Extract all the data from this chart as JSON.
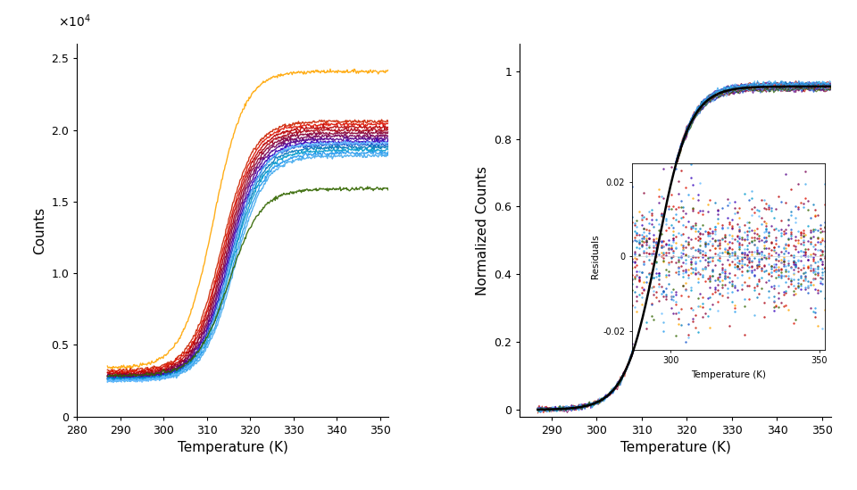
{
  "temp_min": 287,
  "temp_max": 352,
  "sigmoid_tm": 313.5,
  "sigmoid_k": 0.28,
  "left_panel": {
    "xlabel": "Temperature (K)",
    "ylabel": "Counts",
    "xlim": [
      280,
      352
    ],
    "ylim": [
      0,
      26000
    ],
    "yticks": [
      0,
      5000,
      10000,
      15000,
      20000,
      25000
    ],
    "ytick_labels": [
      "0",
      "0.5",
      "1.0",
      "1.5",
      "2.0",
      "2.5"
    ],
    "xticks": [
      280,
      290,
      300,
      310,
      320,
      330,
      340,
      350
    ],
    "curves": [
      {
        "color": "#FFA500",
        "ymin": 3400,
        "ymax": 24100,
        "tm": 311.5,
        "k": 0.28
      },
      {
        "color": "#CC2200",
        "ymin": 3200,
        "ymax": 20600,
        "tm": 313.5,
        "k": 0.28
      },
      {
        "color": "#DD1100",
        "ymin": 3100,
        "ymax": 20400,
        "tm": 313.8,
        "k": 0.28
      },
      {
        "color": "#BB0000",
        "ymin": 3000,
        "ymax": 20200,
        "tm": 314.0,
        "k": 0.28
      },
      {
        "color": "#AA0011",
        "ymin": 2900,
        "ymax": 20000,
        "tm": 314.2,
        "k": 0.28
      },
      {
        "color": "#880033",
        "ymin": 2850,
        "ymax": 19800,
        "tm": 314.4,
        "k": 0.28
      },
      {
        "color": "#770055",
        "ymin": 2800,
        "ymax": 19600,
        "tm": 314.6,
        "k": 0.28
      },
      {
        "color": "#550088",
        "ymin": 2750,
        "ymax": 19400,
        "tm": 314.8,
        "k": 0.28
      },
      {
        "color": "#3300BB",
        "ymin": 2700,
        "ymax": 19200,
        "tm": 315.0,
        "k": 0.28
      },
      {
        "color": "#1155CC",
        "ymin": 2650,
        "ymax": 19000,
        "tm": 315.2,
        "k": 0.28
      },
      {
        "color": "#0077BB",
        "ymin": 2600,
        "ymax": 18800,
        "tm": 315.5,
        "k": 0.28
      },
      {
        "color": "#0099CC",
        "ymin": 2600,
        "ymax": 18600,
        "tm": 315.7,
        "k": 0.28
      },
      {
        "color": "#2299EE",
        "ymin": 2550,
        "ymax": 18400,
        "tm": 316.0,
        "k": 0.28
      },
      {
        "color": "#44AAEE",
        "ymin": 2500,
        "ymax": 18200,
        "tm": 316.3,
        "k": 0.28
      },
      {
        "color": "#66BBFF",
        "ymin": 2500,
        "ymax": 19100,
        "tm": 315.5,
        "k": 0.28
      },
      {
        "color": "#336600",
        "ymin": 2850,
        "ymax": 15900,
        "tm": 315.0,
        "k": 0.27
      }
    ]
  },
  "right_panel": {
    "xlabel": "Temperature (K)",
    "ylabel": "Normalized Counts",
    "xlim": [
      283,
      352
    ],
    "ylim": [
      -0.02,
      1.08
    ],
    "yticks": [
      0,
      0.2,
      0.4,
      0.6,
      0.8,
      1.0
    ],
    "xticks": [
      290,
      300,
      310,
      320,
      330,
      340,
      350
    ],
    "fit_color": "#000000",
    "fit_tm": 313.5,
    "fit_k": 0.28,
    "fit_plateau": 0.955,
    "data_colors": [
      "#FFA500",
      "#CC2200",
      "#DD1100",
      "#BB0000",
      "#AA0011",
      "#880033",
      "#770055",
      "#550088",
      "#3300BB",
      "#1155CC",
      "#0077BB",
      "#0099CC",
      "#2299EE",
      "#44AAEE",
      "#66BBFF",
      "#336600"
    ],
    "inset": {
      "xlim": [
        287,
        352
      ],
      "ylim": [
        -0.025,
        0.025
      ],
      "yticks": [
        -0.02,
        0,
        0.02
      ],
      "xlabel": "Temperature (K)",
      "ylabel": "Residuals",
      "xticks": [
        300,
        350
      ],
      "xtick_labels": [
        "300",
        "350"
      ]
    }
  }
}
